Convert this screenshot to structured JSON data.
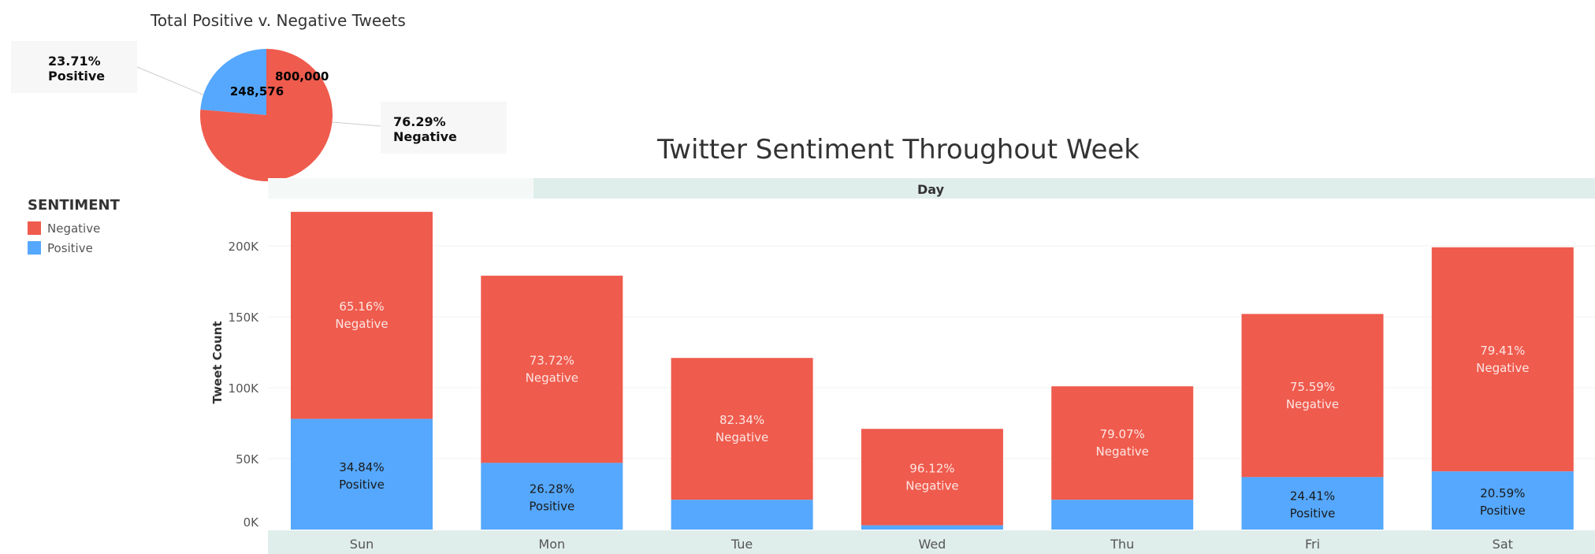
{
  "pie": {
    "title": "Total Positive v. Negative Tweets",
    "value_positive": "248,576",
    "value_negative": "800,000",
    "positive_pct": "23.71%",
    "positive_label": "Positive",
    "negative_pct": "76.29%",
    "negative_label": "Negative"
  },
  "legend": {
    "title": "SENTIMENT",
    "items": [
      {
        "label": "Negative",
        "color": "#ef5b4d"
      },
      {
        "label": "Positive",
        "color": "#55a8fd"
      }
    ]
  },
  "chart": {
    "title": "Twitter Sentiment Throughout Week",
    "column_header": "Day",
    "ylabel": "Tweet Count"
  },
  "chart_data": [
    {
      "type": "pie",
      "title": "Total Positive v. Negative Tweets",
      "slices": [
        {
          "label": "Positive",
          "value": 248576,
          "percent": 23.71,
          "color": "#55a8fd"
        },
        {
          "label": "Negative",
          "value": 800000,
          "percent": 76.29,
          "color": "#ef5b4d"
        }
      ]
    },
    {
      "type": "bar",
      "stacked": true,
      "title": "Twitter Sentiment Throughout Week",
      "xlabel": "Day",
      "ylabel": "Tweet Count",
      "categories": [
        "Sun",
        "Mon",
        "Tue",
        "Wed",
        "Thu",
        "Fri",
        "Sat"
      ],
      "ylim": [
        0,
        240000
      ],
      "yticks": [
        0,
        50000,
        100000,
        150000,
        200000
      ],
      "ytick_labels": [
        "0K",
        "50K",
        "100K",
        "150K",
        "200K"
      ],
      "series": [
        {
          "name": "Positive",
          "color": "#55a8fd",
          "values": [
            78000,
            47000,
            21000,
            3000,
            21000,
            37000,
            41000
          ],
          "labels": [
            "34.84%\nPositive",
            "26.28%\nPositive",
            "",
            "",
            "",
            "24.41%\nPositive",
            "20.59%\nPositive"
          ]
        },
        {
          "name": "Negative",
          "color": "#ef5b4d",
          "values": [
            146000,
            132000,
            100000,
            68000,
            80000,
            115000,
            158000
          ],
          "labels": [
            "65.16%\nNegative",
            "73.72%\nNegative",
            "82.34%\nNegative",
            "96.12%\nNegative",
            "79.07%\nNegative",
            "75.59%\nNegative",
            "79.41%\nNegative"
          ]
        }
      ],
      "grid": true
    }
  ]
}
